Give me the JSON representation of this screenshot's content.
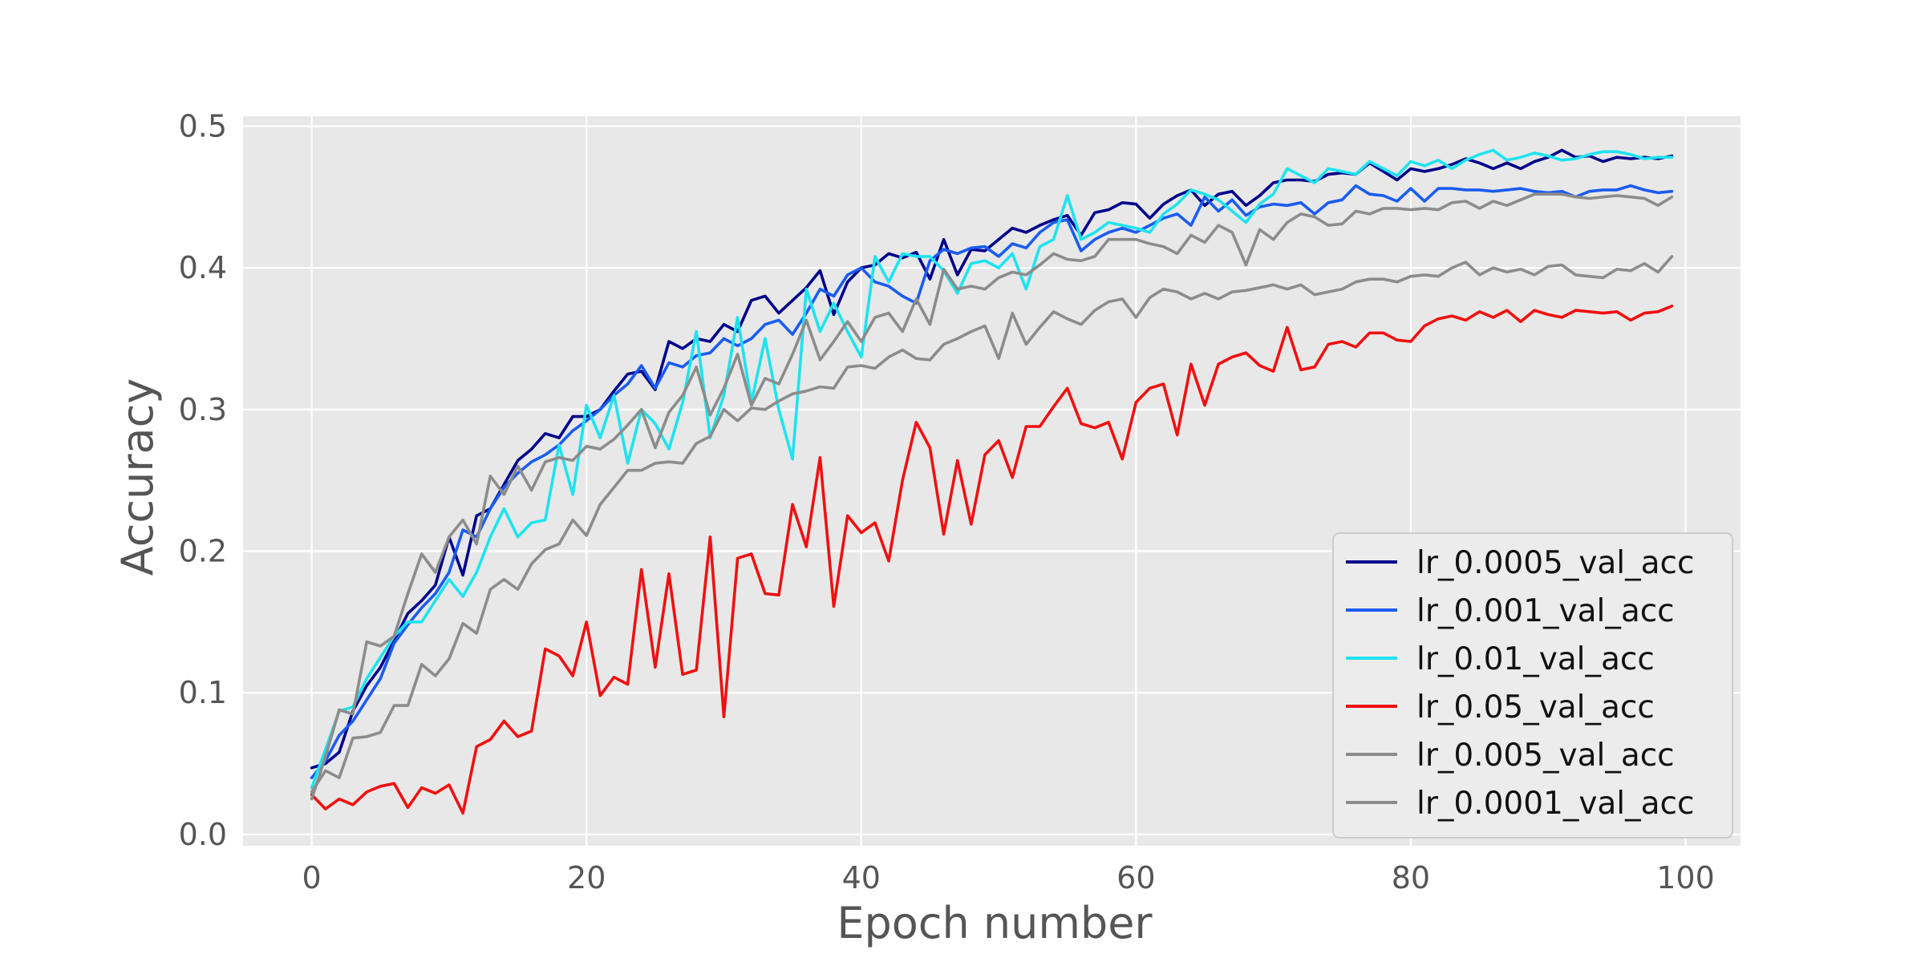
{
  "chart_data": {
    "type": "line",
    "xlabel": "Epoch number",
    "ylabel": "Accuracy",
    "xlim": [
      -5,
      104
    ],
    "ylim": [
      -0.008,
      0.507
    ],
    "xticks": [
      0,
      20,
      40,
      60,
      80,
      100
    ],
    "yticks": [
      0.0,
      0.1,
      0.2,
      0.3,
      0.4,
      0.5
    ],
    "xtick_labels": [
      "0",
      "20",
      "40",
      "60",
      "80",
      "100"
    ],
    "ytick_labels": [
      "0.0",
      "0.1",
      "0.2",
      "0.3",
      "0.4",
      "0.5"
    ],
    "grid": true,
    "background": "#e8e8e8",
    "legend_position": "lower-right",
    "series": [
      {
        "name": "lr_0.0005_val_acc",
        "color": "#00008b",
        "x_start": 0,
        "values": [
          0.047,
          0.05,
          0.058,
          0.087,
          0.105,
          0.118,
          0.137,
          0.156,
          0.165,
          0.176,
          0.21,
          0.183,
          0.225,
          0.23,
          0.247,
          0.264,
          0.272,
          0.283,
          0.28,
          0.295,
          0.295,
          0.3,
          0.313,
          0.325,
          0.327,
          0.314,
          0.348,
          0.343,
          0.35,
          0.348,
          0.36,
          0.355,
          0.377,
          0.38,
          0.368,
          0.377,
          0.386,
          0.398,
          0.367,
          0.39,
          0.4,
          0.402,
          0.41,
          0.407,
          0.411,
          0.392,
          0.42,
          0.395,
          0.413,
          0.412,
          0.42,
          0.428,
          0.425,
          0.43,
          0.434,
          0.437,
          0.423,
          0.439,
          0.441,
          0.446,
          0.445,
          0.435,
          0.445,
          0.451,
          0.455,
          0.444,
          0.452,
          0.454,
          0.444,
          0.451,
          0.46,
          0.462,
          0.462,
          0.461,
          0.466,
          0.467,
          0.466,
          0.474,
          0.468,
          0.462,
          0.47,
          0.468,
          0.47,
          0.473,
          0.477,
          0.474,
          0.47,
          0.474,
          0.47,
          0.475,
          0.478,
          0.483,
          0.478,
          0.479,
          0.475,
          0.478,
          0.477,
          0.478,
          0.477,
          0.479
        ]
      },
      {
        "name": "lr_0.001_val_acc",
        "color": "#1a5cf0",
        "x_start": 0,
        "values": [
          0.04,
          0.052,
          0.07,
          0.08,
          0.095,
          0.11,
          0.135,
          0.148,
          0.16,
          0.17,
          0.185,
          0.215,
          0.21,
          0.23,
          0.245,
          0.255,
          0.263,
          0.268,
          0.275,
          0.285,
          0.292,
          0.3,
          0.31,
          0.318,
          0.331,
          0.315,
          0.333,
          0.33,
          0.338,
          0.34,
          0.35,
          0.345,
          0.35,
          0.36,
          0.363,
          0.353,
          0.368,
          0.385,
          0.38,
          0.395,
          0.4,
          0.39,
          0.387,
          0.38,
          0.375,
          0.405,
          0.413,
          0.41,
          0.414,
          0.415,
          0.408,
          0.417,
          0.414,
          0.425,
          0.432,
          0.434,
          0.412,
          0.42,
          0.425,
          0.428,
          0.425,
          0.43,
          0.435,
          0.438,
          0.43,
          0.45,
          0.44,
          0.448,
          0.437,
          0.443,
          0.445,
          0.444,
          0.446,
          0.438,
          0.446,
          0.448,
          0.458,
          0.452,
          0.451,
          0.447,
          0.456,
          0.447,
          0.456,
          0.456,
          0.455,
          0.455,
          0.454,
          0.455,
          0.456,
          0.454,
          0.453,
          0.454,
          0.45,
          0.454,
          0.455,
          0.455,
          0.458,
          0.455,
          0.453,
          0.454
        ]
      },
      {
        "name": "lr_0.01_val_acc",
        "color": "#1ee3ef",
        "x_start": 0,
        "values": [
          0.033,
          0.06,
          0.087,
          0.09,
          0.11,
          0.125,
          0.14,
          0.15,
          0.15,
          0.165,
          0.18,
          0.168,
          0.185,
          0.21,
          0.23,
          0.21,
          0.22,
          0.222,
          0.275,
          0.24,
          0.303,
          0.28,
          0.31,
          0.262,
          0.3,
          0.29,
          0.272,
          0.305,
          0.355,
          0.28,
          0.31,
          0.365,
          0.305,
          0.35,
          0.3,
          0.265,
          0.385,
          0.355,
          0.375,
          0.355,
          0.337,
          0.408,
          0.39,
          0.41,
          0.408,
          0.408,
          0.398,
          0.382,
          0.403,
          0.405,
          0.4,
          0.41,
          0.385,
          0.415,
          0.42,
          0.451,
          0.42,
          0.425,
          0.432,
          0.43,
          0.428,
          0.425,
          0.438,
          0.445,
          0.455,
          0.452,
          0.448,
          0.44,
          0.432,
          0.445,
          0.452,
          0.47,
          0.465,
          0.46,
          0.47,
          0.468,
          0.466,
          0.475,
          0.47,
          0.465,
          0.475,
          0.472,
          0.476,
          0.47,
          0.476,
          0.48,
          0.483,
          0.476,
          0.478,
          0.481,
          0.479,
          0.476,
          0.477,
          0.48,
          0.482,
          0.482,
          0.48,
          0.477,
          0.478,
          0.478
        ]
      },
      {
        "name": "lr_0.05_val_acc",
        "color": "#f01010",
        "x_start": 0,
        "values": [
          0.028,
          0.018,
          0.025,
          0.021,
          0.03,
          0.034,
          0.036,
          0.019,
          0.033,
          0.029,
          0.035,
          0.015,
          0.062,
          0.067,
          0.08,
          0.069,
          0.073,
          0.131,
          0.126,
          0.112,
          0.15,
          0.098,
          0.111,
          0.106,
          0.187,
          0.118,
          0.184,
          0.113,
          0.116,
          0.21,
          0.083,
          0.195,
          0.198,
          0.17,
          0.169,
          0.233,
          0.203,
          0.266,
          0.161,
          0.225,
          0.213,
          0.22,
          0.193,
          0.25,
          0.291,
          0.273,
          0.212,
          0.264,
          0.219,
          0.268,
          0.278,
          0.252,
          0.288,
          0.288,
          0.302,
          0.315,
          0.29,
          0.287,
          0.291,
          0.265,
          0.305,
          0.315,
          0.318,
          0.282,
          0.332,
          0.303,
          0.332,
          0.337,
          0.34,
          0.331,
          0.327,
          0.358,
          0.328,
          0.33,
          0.346,
          0.348,
          0.344,
          0.354,
          0.354,
          0.349,
          0.348,
          0.359,
          0.364,
          0.366,
          0.363,
          0.369,
          0.365,
          0.37,
          0.362,
          0.37,
          0.367,
          0.365,
          0.37,
          0.369,
          0.368,
          0.369,
          0.363,
          0.368,
          0.369,
          0.373
        ]
      },
      {
        "name": "lr_0.005_val_acc",
        "color": "#8c8c8c",
        "x_start": 0,
        "values": [
          0.03,
          0.045,
          0.04,
          0.068,
          0.069,
          0.072,
          0.091,
          0.091,
          0.12,
          0.112,
          0.124,
          0.149,
          0.142,
          0.173,
          0.18,
          0.173,
          0.191,
          0.201,
          0.205,
          0.222,
          0.211,
          0.233,
          0.245,
          0.257,
          0.257,
          0.262,
          0.263,
          0.262,
          0.276,
          0.281,
          0.3,
          0.292,
          0.301,
          0.3,
          0.306,
          0.311,
          0.313,
          0.316,
          0.315,
          0.33,
          0.331,
          0.329,
          0.337,
          0.342,
          0.336,
          0.335,
          0.346,
          0.35,
          0.355,
          0.359,
          0.336,
          0.368,
          0.346,
          0.358,
          0.369,
          0.364,
          0.36,
          0.37,
          0.376,
          0.378,
          0.365,
          0.379,
          0.385,
          0.383,
          0.378,
          0.382,
          0.378,
          0.383,
          0.384,
          0.386,
          0.388,
          0.385,
          0.388,
          0.381,
          0.383,
          0.385,
          0.39,
          0.392,
          0.392,
          0.39,
          0.394,
          0.395,
          0.394,
          0.4,
          0.404,
          0.395,
          0.4,
          0.397,
          0.399,
          0.395,
          0.401,
          0.402,
          0.395,
          0.394,
          0.393,
          0.399,
          0.398,
          0.403,
          0.397,
          0.408
        ]
      },
      {
        "name": "lr_0.0001_val_acc",
        "color": "#8c8c8c",
        "x_start": 0,
        "values": [
          0.025,
          0.055,
          0.088,
          0.085,
          0.136,
          0.133,
          0.14,
          0.17,
          0.198,
          0.185,
          0.21,
          0.222,
          0.205,
          0.253,
          0.24,
          0.26,
          0.243,
          0.263,
          0.266,
          0.264,
          0.274,
          0.272,
          0.279,
          0.289,
          0.3,
          0.273,
          0.298,
          0.31,
          0.33,
          0.296,
          0.315,
          0.339,
          0.303,
          0.322,
          0.318,
          0.339,
          0.363,
          0.335,
          0.348,
          0.362,
          0.348,
          0.365,
          0.368,
          0.355,
          0.378,
          0.36,
          0.399,
          0.385,
          0.387,
          0.385,
          0.393,
          0.397,
          0.395,
          0.402,
          0.41,
          0.406,
          0.405,
          0.408,
          0.42,
          0.42,
          0.42,
          0.417,
          0.415,
          0.41,
          0.423,
          0.418,
          0.43,
          0.425,
          0.402,
          0.427,
          0.42,
          0.432,
          0.438,
          0.436,
          0.43,
          0.431,
          0.44,
          0.438,
          0.442,
          0.442,
          0.441,
          0.442,
          0.441,
          0.446,
          0.447,
          0.442,
          0.447,
          0.444,
          0.448,
          0.452,
          0.452,
          0.452,
          0.45,
          0.449,
          0.45,
          0.451,
          0.45,
          0.449,
          0.444,
          0.45
        ]
      }
    ]
  }
}
